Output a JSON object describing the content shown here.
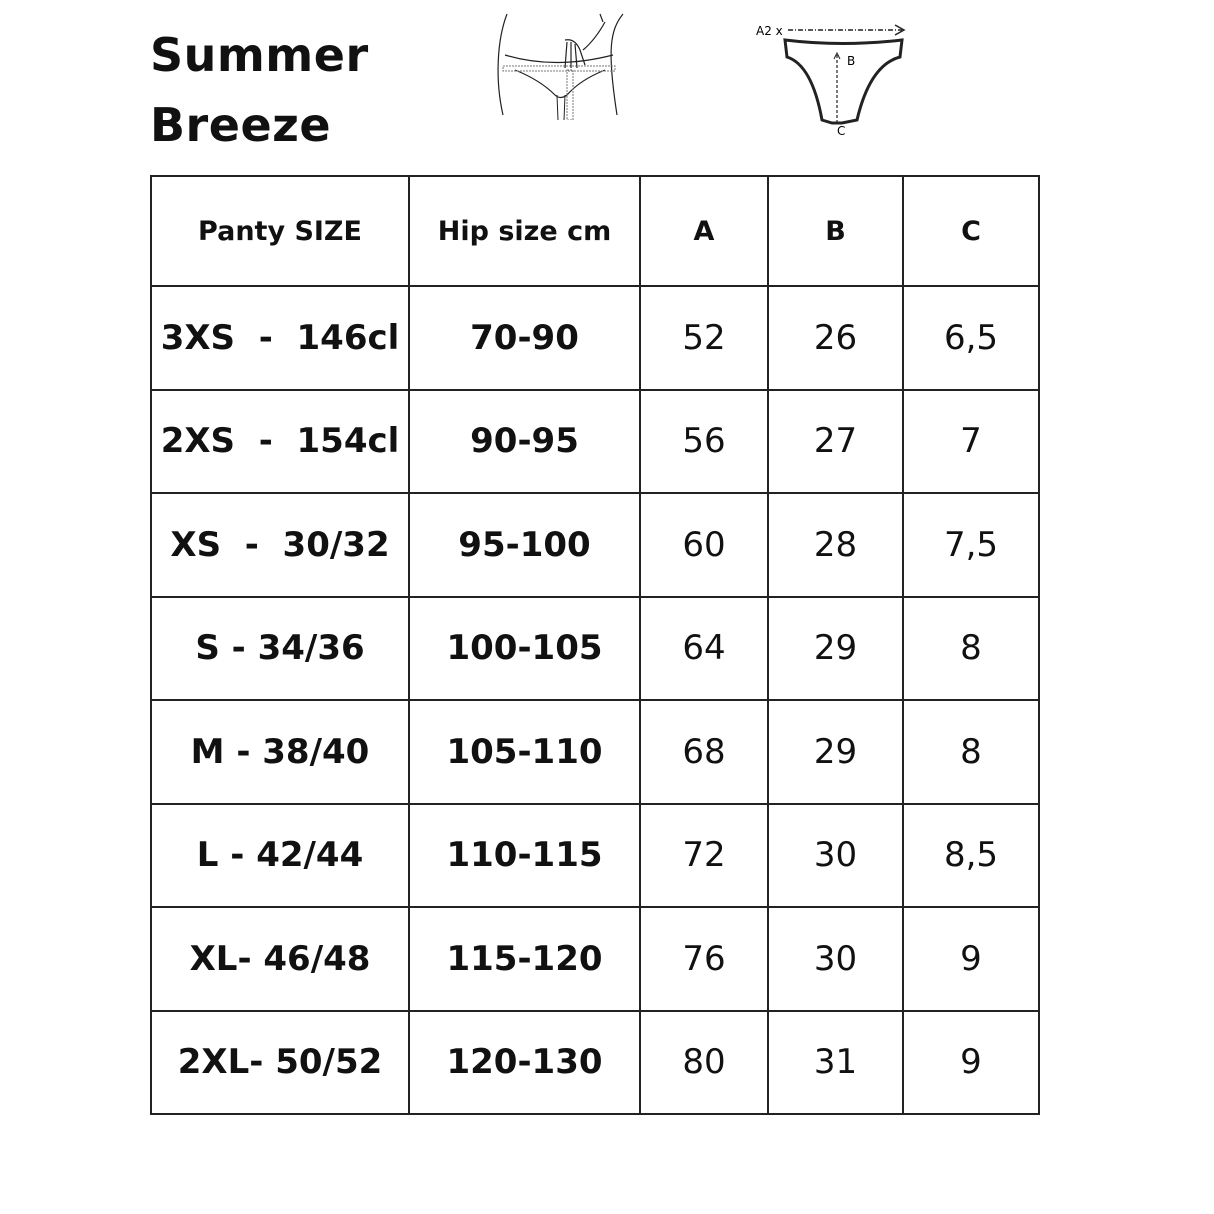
{
  "title_line1": "Summer",
  "title_line2": "Breeze",
  "diagram_labels": {
    "a": "A2 x",
    "b": "B",
    "c": "C"
  },
  "headers": [
    "Panty SIZE",
    "Hip size cm",
    "A",
    "B",
    "C"
  ],
  "rows": [
    [
      "3XS  -  146cl",
      "70-90",
      "52",
      "26",
      "6,5"
    ],
    [
      "2XS  -  154cl",
      "90-95",
      "56",
      "27",
      "7"
    ],
    [
      "XS  -  30/32",
      "95-100",
      "60",
      "28",
      "7,5"
    ],
    [
      "S - 34/36",
      "100-105",
      "64",
      "29",
      "8"
    ],
    [
      "M - 38/40",
      "105-110",
      "68",
      "29",
      "8"
    ],
    [
      "L - 42/44",
      "110-115",
      "72",
      "30",
      "8,5"
    ],
    [
      "XL- 46/48",
      "115-120",
      "76",
      "30",
      "9"
    ],
    [
      "2XL- 50/52",
      "120-130",
      "80",
      "31",
      "9"
    ]
  ]
}
